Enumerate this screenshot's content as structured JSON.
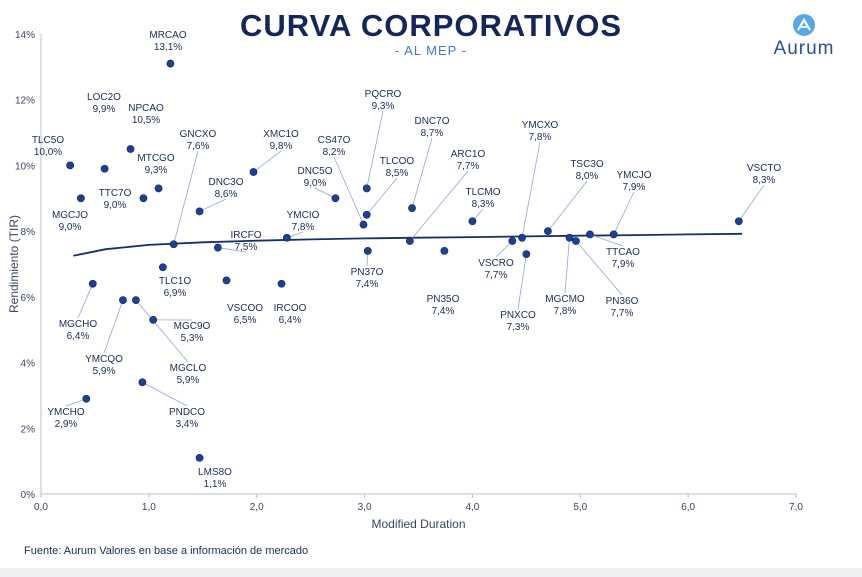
{
  "header": {
    "title": "CURVA CORPORATIVOS",
    "subtitle": "- AL MEP -",
    "logo_text": "Aurum"
  },
  "footer": {
    "source": "Fuente: Aurum Valores en base a información de mercado"
  },
  "colors": {
    "point": "#1f3f8f",
    "curve": "#14306b",
    "label": "#1c2b5a",
    "leader": "#8fa6d6"
  },
  "chart_data": {
    "type": "scatter",
    "title": "CURVA CORPORATIVOS",
    "subtitle": "- AL MEP -",
    "xlabel": "Modified Duration",
    "ylabel": "Rendimiento (TIR)",
    "xlim": [
      0,
      7
    ],
    "ylim": [
      0,
      14
    ],
    "x_ticks": [
      "0,0",
      "1,0",
      "2,0",
      "3,0",
      "4,0",
      "5,0",
      "6,0",
      "7,0"
    ],
    "y_ticks": [
      "0%",
      "2%",
      "4%",
      "6%",
      "8%",
      "10%",
      "12%",
      "14%"
    ],
    "grid": false,
    "legend": "none",
    "points": [
      {
        "name": "TLC5O",
        "value": "10,0%",
        "x": 0.27,
        "y": 10.0
      },
      {
        "name": "MGCJO",
        "value": "9,0%",
        "x": 0.37,
        "y": 9.0
      },
      {
        "name": "LOC2O",
        "value": "9,9%",
        "x": 0.59,
        "y": 9.9
      },
      {
        "name": "NPCAO",
        "value": "10,5%",
        "x": 0.83,
        "y": 10.5
      },
      {
        "name": "MTCGO",
        "value": "9,3%",
        "x": 1.09,
        "y": 9.3
      },
      {
        "name": "TTC7O",
        "value": "9,0%",
        "x": 0.95,
        "y": 9.0
      },
      {
        "name": "MRCAO",
        "value": "13,1%",
        "x": 1.2,
        "y": 13.1
      },
      {
        "name": "GNCXO",
        "value": "7,6%",
        "x": 1.23,
        "y": 7.6
      },
      {
        "name": "DNC3O",
        "value": "8,6%",
        "x": 1.47,
        "y": 8.6
      },
      {
        "name": "XMC1O",
        "value": "9,8%",
        "x": 1.97,
        "y": 9.8
      },
      {
        "name": "IRCFO",
        "value": "7,5%",
        "x": 1.64,
        "y": 7.5
      },
      {
        "name": "YMCIO",
        "value": "7,8%",
        "x": 2.28,
        "y": 7.8
      },
      {
        "name": "DNC5O",
        "value": "9,0%",
        "x": 2.73,
        "y": 9.0
      },
      {
        "name": "CS47O",
        "value": "8,2%",
        "x": 2.99,
        "y": 8.2
      },
      {
        "name": "PQCRO",
        "value": "9,3%",
        "x": 3.02,
        "y": 9.3
      },
      {
        "name": "TLCOO",
        "value": "8,5%",
        "x": 3.02,
        "y": 8.5
      },
      {
        "name": "PN37O",
        "value": "7,4%",
        "x": 3.03,
        "y": 7.4
      },
      {
        "name": "DNC7O",
        "value": "8,7%",
        "x": 3.44,
        "y": 8.7
      },
      {
        "name": "ARC1O",
        "value": "7,7%",
        "x": 3.42,
        "y": 7.7
      },
      {
        "name": "PN35O",
        "value": "7,4%",
        "x": 3.74,
        "y": 7.4
      },
      {
        "name": "TLCMO",
        "value": "8,3%",
        "x": 4.0,
        "y": 8.3
      },
      {
        "name": "VSCRO",
        "value": "7,7%",
        "x": 4.37,
        "y": 7.7
      },
      {
        "name": "YMCXO",
        "value": "7,8%",
        "x": 4.46,
        "y": 7.8
      },
      {
        "name": "PNXCO",
        "value": "7,3%",
        "x": 4.5,
        "y": 7.3
      },
      {
        "name": "TSC3O",
        "value": "8,0%",
        "x": 4.7,
        "y": 8.0
      },
      {
        "name": "MGCMO",
        "value": "7,8%",
        "x": 4.9,
        "y": 7.8
      },
      {
        "name": "PN36O",
        "value": "7,7%",
        "x": 4.96,
        "y": 7.7
      },
      {
        "name": "TTCAO",
        "value": "7,9%",
        "x": 5.09,
        "y": 7.9
      },
      {
        "name": "YMCJO",
        "value": "7,9%",
        "x": 5.31,
        "y": 7.9
      },
      {
        "name": "VSCTO",
        "value": "8,3%",
        "x": 6.47,
        "y": 8.3
      },
      {
        "name": "TLC1O",
        "value": "6,9%",
        "x": 1.13,
        "y": 6.9
      },
      {
        "name": "VSCOO",
        "value": "6,5%",
        "x": 1.72,
        "y": 6.5
      },
      {
        "name": "IRCOO",
        "value": "6,4%",
        "x": 2.23,
        "y": 6.4
      },
      {
        "name": "MGCHO",
        "value": "6,4%",
        "x": 0.48,
        "y": 6.4
      },
      {
        "name": "YMCQO",
        "value": "5,9%",
        "x": 0.76,
        "y": 5.9
      },
      {
        "name": "MGCLO",
        "value": "5,9%",
        "x": 0.88,
        "y": 5.9
      },
      {
        "name": "MGC9O",
        "value": "5,3%",
        "x": 1.04,
        "y": 5.3
      },
      {
        "name": "PNDCO",
        "value": "3,4%",
        "x": 0.94,
        "y": 3.4
      },
      {
        "name": "YMCHO",
        "value": "2,9%",
        "x": 0.42,
        "y": 2.9
      },
      {
        "name": "LMS8O",
        "value": "1,1%",
        "x": 1.47,
        "y": 1.1
      }
    ],
    "curve": {
      "type": "line",
      "x": [
        0.3,
        0.6,
        1.0,
        1.5,
        2.0,
        2.5,
        3.0,
        3.5,
        4.0,
        4.5,
        5.0,
        5.5,
        6.0,
        6.5
      ],
      "y": [
        7.25,
        7.45,
        7.58,
        7.66,
        7.71,
        7.75,
        7.78,
        7.8,
        7.82,
        7.84,
        7.86,
        7.88,
        7.9,
        7.92
      ]
    }
  }
}
